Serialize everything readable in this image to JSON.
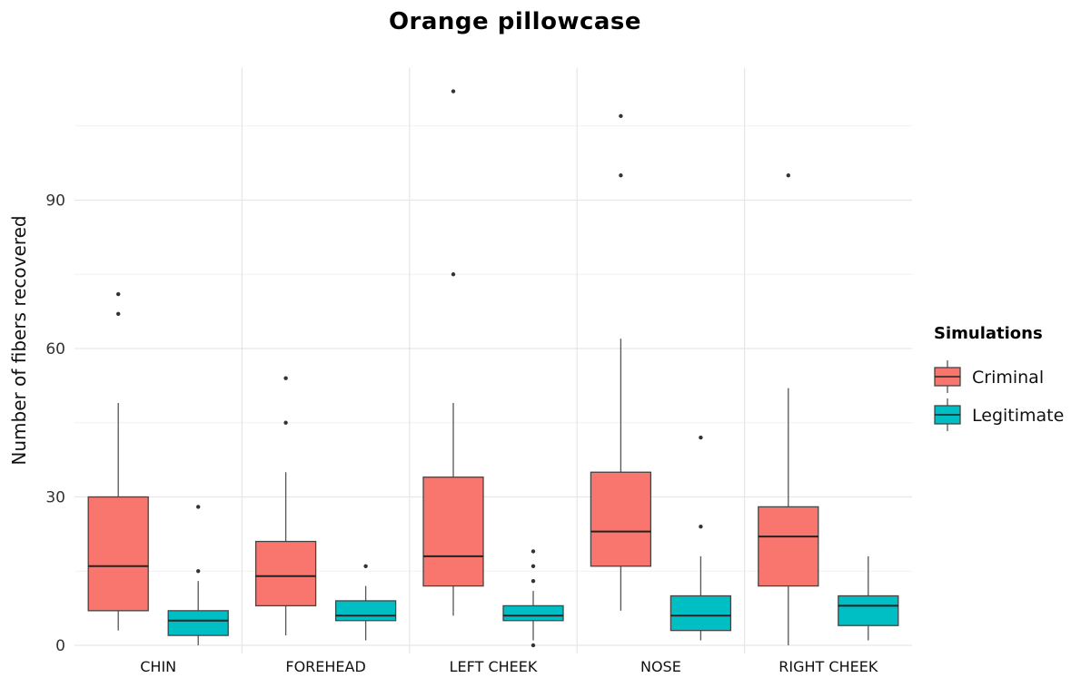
{
  "chart_data": {
    "type": "boxplot",
    "title": "Orange pillowcase",
    "xlabel": "",
    "ylabel": "Number of fibers recovered",
    "ylim": [
      0,
      118
    ],
    "yticks": [
      0,
      30,
      60,
      90
    ],
    "categories": [
      "CHIN",
      "FOREHEAD",
      "LEFT CHEEK",
      "NOSE",
      "RIGHT CHEEK"
    ],
    "grid": true,
    "legend": {
      "title": "Simulations",
      "position": "right",
      "entries": [
        "Criminal",
        "Legitimate"
      ]
    },
    "series": [
      {
        "name": "Criminal",
        "color": "#F8766D",
        "boxes": [
          {
            "category": "CHIN",
            "whisker_low": 3,
            "q1": 7,
            "median": 16,
            "q3": 30,
            "whisker_high": 49,
            "outliers": [
              67,
              71
            ]
          },
          {
            "category": "FOREHEAD",
            "whisker_low": 2,
            "q1": 8,
            "median": 14,
            "q3": 21,
            "whisker_high": 35,
            "outliers": [
              45,
              54
            ]
          },
          {
            "category": "LEFT CHEEK",
            "whisker_low": 6,
            "q1": 12,
            "median": 18,
            "q3": 34,
            "whisker_high": 49,
            "outliers": [
              75,
              112
            ]
          },
          {
            "category": "NOSE",
            "whisker_low": 7,
            "q1": 16,
            "median": 23,
            "q3": 35,
            "whisker_high": 62,
            "outliers": [
              95,
              107
            ]
          },
          {
            "category": "RIGHT CHEEK",
            "whisker_low": 0,
            "q1": 12,
            "median": 22,
            "q3": 28,
            "whisker_high": 52,
            "outliers": [
              95
            ]
          }
        ]
      },
      {
        "name": "Legitimate",
        "color": "#00BFC4",
        "boxes": [
          {
            "category": "CHIN",
            "whisker_low": 0,
            "q1": 2,
            "median": 5,
            "q3": 7,
            "whisker_high": 13,
            "outliers": [
              15,
              28
            ]
          },
          {
            "category": "FOREHEAD",
            "whisker_low": 1,
            "q1": 5,
            "median": 6,
            "q3": 9,
            "whisker_high": 12,
            "outliers": [
              16
            ]
          },
          {
            "category": "LEFT CHEEK",
            "whisker_low": 1,
            "q1": 5,
            "median": 6,
            "q3": 8,
            "whisker_high": 11,
            "outliers": [
              0,
              13,
              16,
              19
            ]
          },
          {
            "category": "NOSE",
            "whisker_low": 1,
            "q1": 3,
            "median": 6,
            "q3": 10,
            "whisker_high": 18,
            "outliers": [
              24,
              42
            ]
          },
          {
            "category": "RIGHT CHEEK",
            "whisker_low": 1,
            "q1": 4,
            "median": 8,
            "q3": 10,
            "whisker_high": 18,
            "outliers": []
          }
        ]
      }
    ]
  }
}
